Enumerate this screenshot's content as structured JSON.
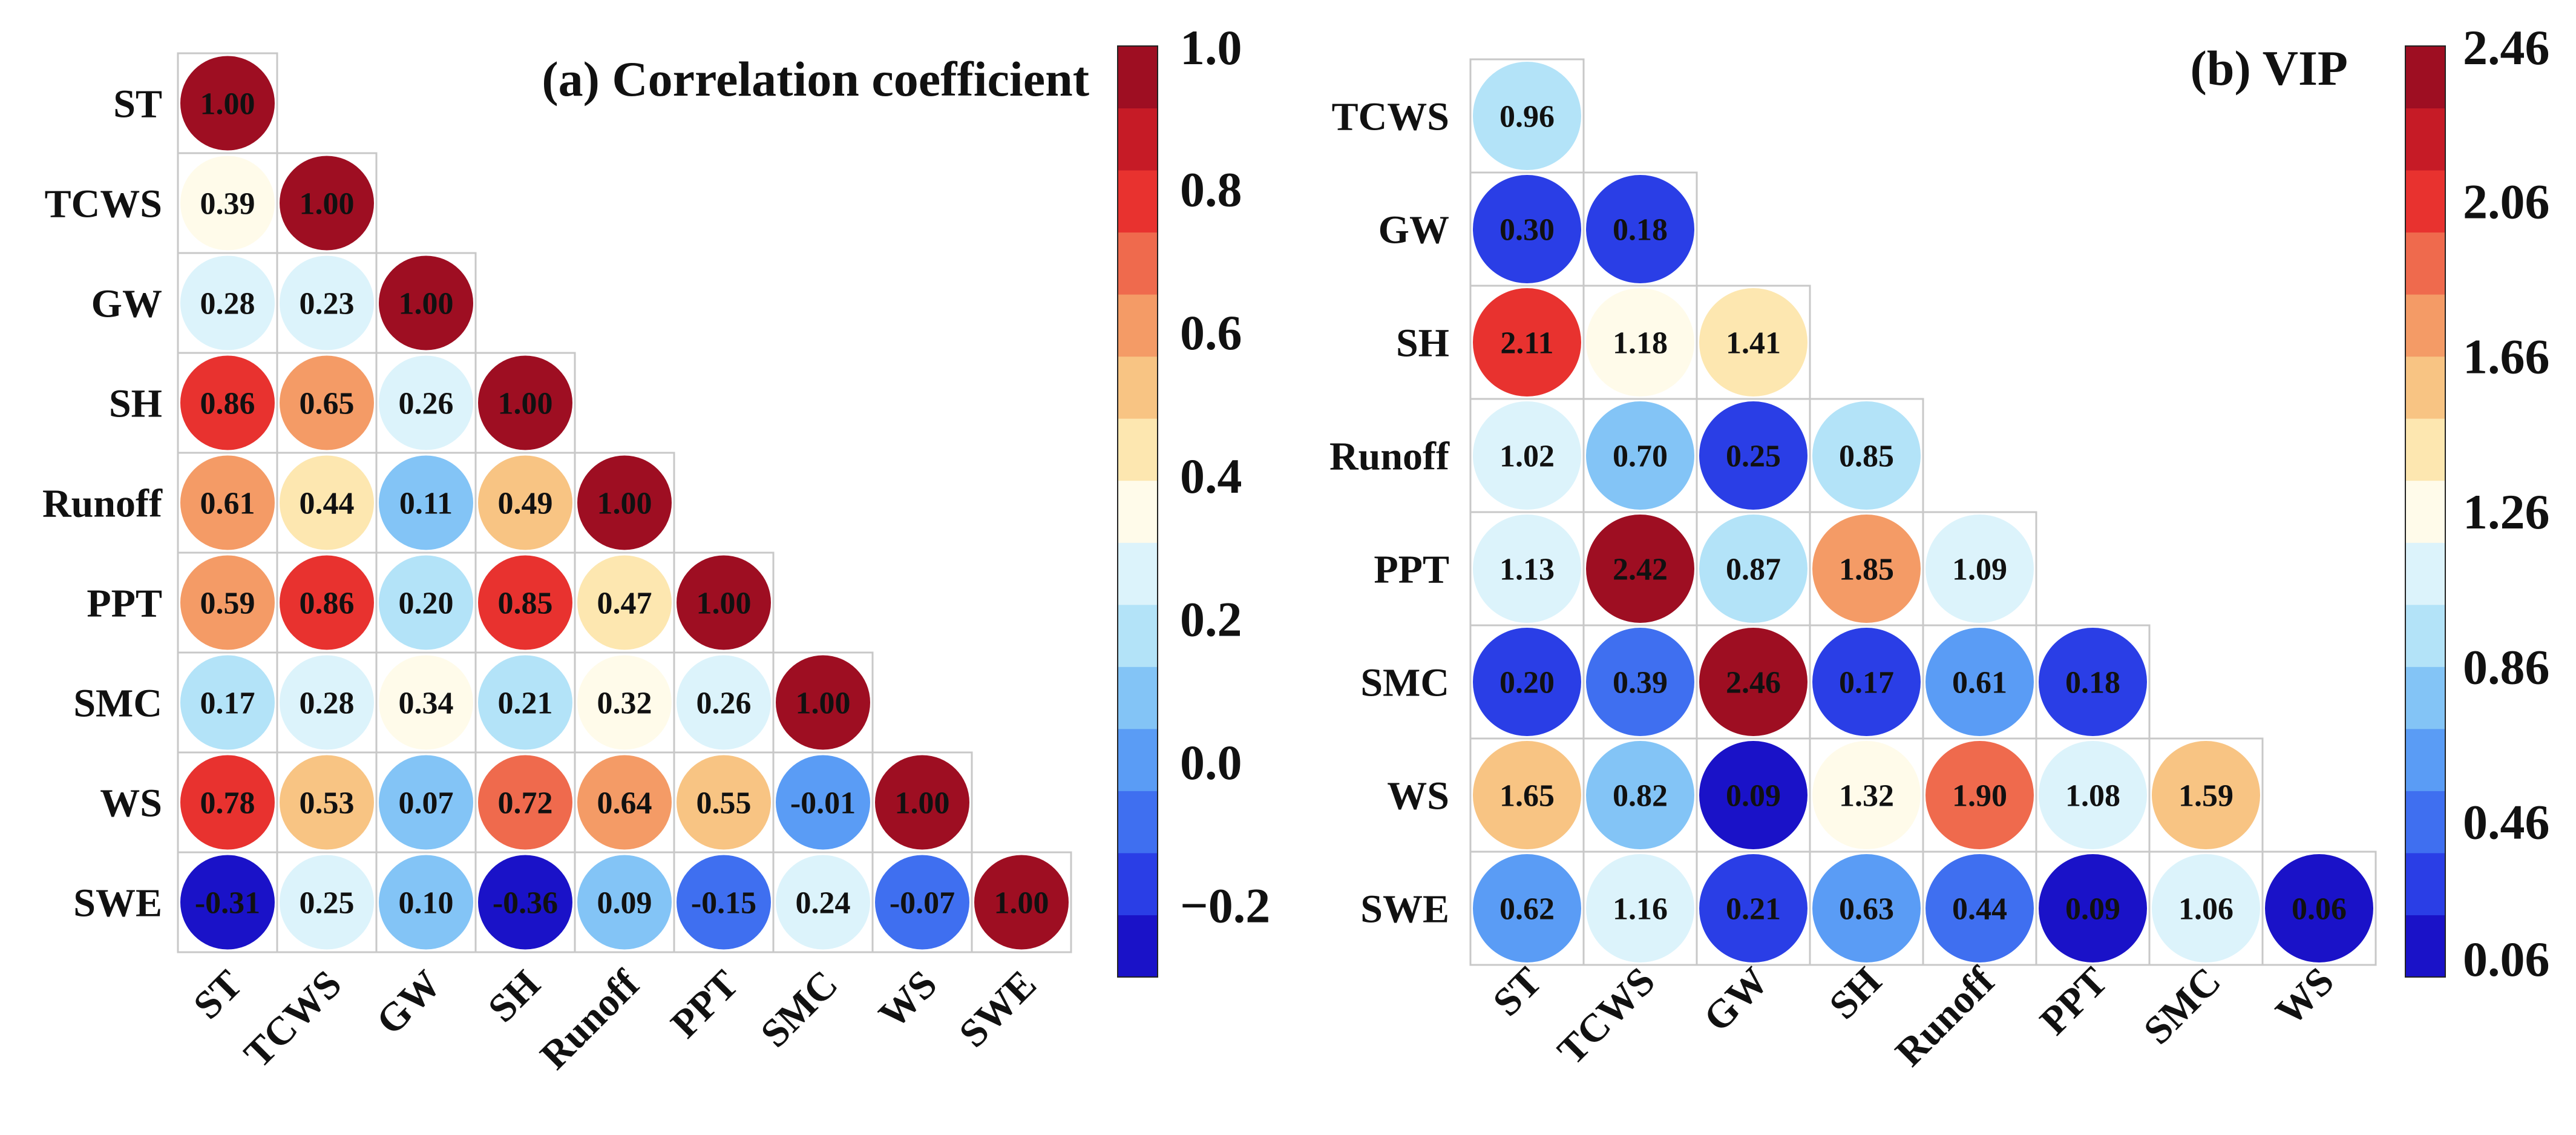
{
  "chart_data": [
    {
      "type": "heatmap",
      "title": "(a) Correlation coefficient",
      "rows": [
        "ST",
        "TCWS",
        "GW",
        "SH",
        "Runoff",
        "PPT",
        "SMC",
        "WS",
        "SWE"
      ],
      "columns": [
        "ST",
        "TCWS",
        "GW",
        "SH",
        "Runoff",
        "PPT",
        "SMC",
        "WS",
        "SWE"
      ],
      "values": [
        [
          1.0
        ],
        [
          0.39,
          1.0
        ],
        [
          0.28,
          0.23,
          1.0
        ],
        [
          0.86,
          0.65,
          0.26,
          1.0
        ],
        [
          0.61,
          0.44,
          0.11,
          0.49,
          1.0
        ],
        [
          0.59,
          0.86,
          0.2,
          0.85,
          0.47,
          1.0
        ],
        [
          0.17,
          0.28,
          0.34,
          0.21,
          0.32,
          0.26,
          1.0
        ],
        [
          0.78,
          0.53,
          0.07,
          0.72,
          0.64,
          0.55,
          -0.01,
          1.0
        ],
        [
          -0.31,
          0.25,
          0.1,
          -0.36,
          0.09,
          -0.15,
          0.24,
          -0.07,
          1.0
        ]
      ],
      "labels": [
        [
          "1.00"
        ],
        [
          "0.39",
          "1.00"
        ],
        [
          "0.28",
          "0.23",
          "1.00"
        ],
        [
          "0.86",
          "0.65",
          "0.26",
          "1.00"
        ],
        [
          "0.61",
          "0.44",
          "0.11",
          "0.49",
          "1.00"
        ],
        [
          "0.59",
          "0.86",
          "0.20",
          "0.85",
          "0.47",
          "1.00"
        ],
        [
          "0.17",
          "0.28",
          "0.34",
          "0.21",
          "0.32",
          "0.26",
          "1.00"
        ],
        [
          "0.78",
          "0.53",
          "0.07",
          "0.72",
          "0.64",
          "0.55",
          "-0.01",
          "1.00"
        ],
        [
          "-0.31",
          "0.25",
          "0.10",
          "-0.36",
          "0.09",
          "-0.15",
          "0.24",
          "-0.07",
          "1.00"
        ]
      ],
      "colorbar": {
        "min": -0.3,
        "max": 1.0,
        "ticks": [
          1.0,
          0.8,
          0.6,
          0.4,
          0.2,
          0.0,
          -0.2
        ],
        "tick_labels": [
          "1.0",
          "0.8",
          "0.6",
          "0.4",
          "0.2",
          "0.0",
          "−0.2"
        ]
      }
    },
    {
      "type": "heatmap",
      "title": "(b) VIP",
      "rows": [
        "TCWS",
        "GW",
        "SH",
        "Runoff",
        "PPT",
        "SMC",
        "WS",
        "SWE"
      ],
      "columns": [
        "ST",
        "TCWS",
        "GW",
        "SH",
        "Runoff",
        "PPT",
        "SMC",
        "WS"
      ],
      "values": [
        [
          0.96
        ],
        [
          0.3,
          0.18
        ],
        [
          2.11,
          1.18,
          1.41
        ],
        [
          1.02,
          0.7,
          0.25,
          0.85
        ],
        [
          1.13,
          2.42,
          0.87,
          1.85,
          1.09
        ],
        [
          0.2,
          0.39,
          2.46,
          0.17,
          0.61,
          0.18
        ],
        [
          1.65,
          0.82,
          0.09,
          1.32,
          1.9,
          1.08,
          1.59
        ],
        [
          0.62,
          1.16,
          0.21,
          0.63,
          0.44,
          0.09,
          1.06,
          0.06
        ]
      ],
      "labels": [
        [
          "0.96"
        ],
        [
          "0.30",
          "0.18"
        ],
        [
          "2.11",
          "1.18",
          "1.41"
        ],
        [
          "1.02",
          "0.70",
          "0.25",
          "0.85"
        ],
        [
          "1.13",
          "2.42",
          "0.87",
          "1.85",
          "1.09"
        ],
        [
          "0.20",
          "0.39",
          "2.46",
          "0.17",
          "0.61",
          "0.18"
        ],
        [
          "1.65",
          "0.82",
          "0.09",
          "1.32",
          "1.90",
          "1.08",
          "1.59"
        ],
        [
          "0.62",
          "1.16",
          "0.21",
          "0.63",
          "0.44",
          "0.09",
          "1.06",
          "0.06"
        ]
      ],
      "colorbar": {
        "min": 0.06,
        "max": 2.46,
        "ticks": [
          2.46,
          2.06,
          1.66,
          1.26,
          0.86,
          0.46,
          0.06
        ],
        "tick_labels": [
          "2.46",
          "2.06",
          "1.66",
          "1.26",
          "0.86",
          "0.46",
          "0.06"
        ]
      }
    }
  ],
  "colormap": [
    "#1a12c8",
    "#2a3ee6",
    "#3f6ff0",
    "#5a9cf5",
    "#83c4f6",
    "#b3e3f8",
    "#dcf3fb",
    "#fffbea",
    "#fde7b0",
    "#f8c483",
    "#f49b66",
    "#ef6a4d",
    "#e8322f",
    "#c61b26",
    "#9e0e22"
  ]
}
